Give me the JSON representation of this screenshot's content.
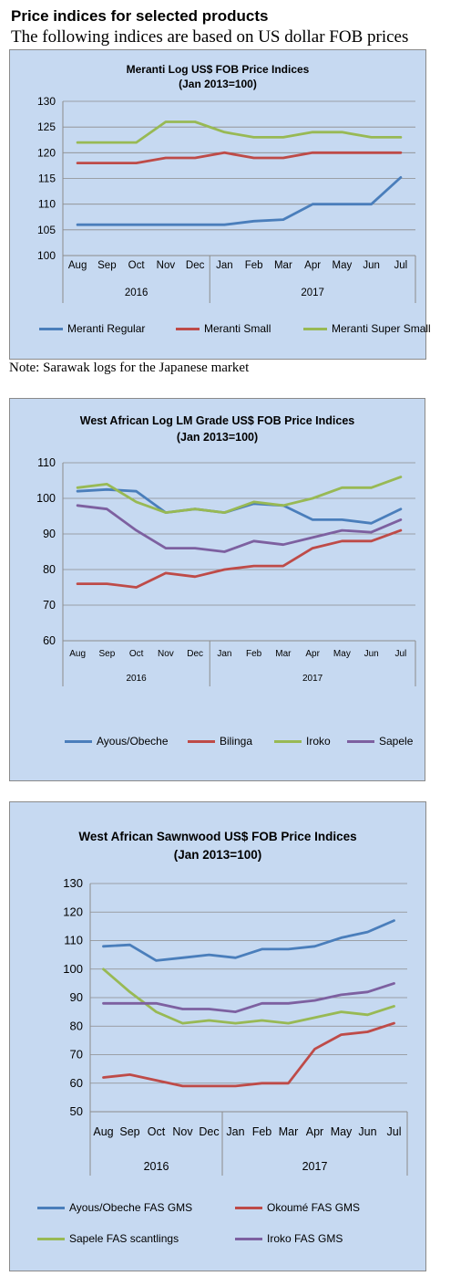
{
  "page": {
    "heading": "Price indices for selected products",
    "subheading": "The following indices are based on US dollar FOB prices",
    "note": "Note: Sarawak logs for the Japanese market"
  },
  "chart_data": [
    {
      "type": "line",
      "title": "Meranti Log US$ FOB Price Indices",
      "subtitle": "(Jan 2013=100)",
      "categories": [
        "Aug",
        "Sep",
        "Oct",
        "Nov",
        "Dec",
        "Jan",
        "Feb",
        "Mar",
        "Apr",
        "May",
        "Jun",
        "Jul"
      ],
      "groups": [
        {
          "label": "2016",
          "from": 0,
          "to": 4
        },
        {
          "label": "2017",
          "from": 5,
          "to": 11
        }
      ],
      "ylim": [
        100,
        130
      ],
      "yticks": [
        100,
        105,
        110,
        115,
        120,
        125,
        130
      ],
      "grid": true,
      "legend": "bottom",
      "series": [
        {
          "name": "Meranti Regular",
          "color": "#4a7ebb",
          "values": [
            106,
            106,
            106,
            106,
            106,
            106,
            106.7,
            107,
            110,
            110,
            110,
            115.2
          ]
        },
        {
          "name": "Meranti Small",
          "color": "#be4b48",
          "values": [
            118,
            118,
            118,
            119,
            119,
            120,
            119,
            119,
            120,
            120,
            120,
            120
          ]
        },
        {
          "name": "Meranti Super Small",
          "color": "#98b954",
          "values": [
            122,
            122,
            122,
            126,
            126,
            124,
            123,
            123,
            124,
            124,
            123,
            123
          ]
        }
      ]
    },
    {
      "type": "line",
      "title": "West African Log LM Grade US$ FOB Price Indices",
      "subtitle": "(Jan 2013=100)",
      "categories": [
        "Aug",
        "Sep",
        "Oct",
        "Nov",
        "Dec",
        "Jan",
        "Feb",
        "Mar",
        "Apr",
        "May",
        "Jun",
        "Jul"
      ],
      "groups": [
        {
          "label": "2016",
          "from": 0,
          "to": 4
        },
        {
          "label": "2017",
          "from": 5,
          "to": 11
        }
      ],
      "ylim": [
        60,
        110
      ],
      "yticks": [
        60,
        70,
        80,
        90,
        100,
        110
      ],
      "grid": true,
      "legend": "bottom",
      "series": [
        {
          "name": "Ayous/Obeche",
          "color": "#4a7ebb",
          "values": [
            102,
            102.5,
            102,
            96,
            97,
            96,
            98.5,
            98,
            94,
            94,
            93,
            97
          ]
        },
        {
          "name": "Bilinga",
          "color": "#be4b48",
          "values": [
            76,
            76,
            75,
            79,
            78,
            80,
            81,
            81,
            86,
            88,
            88,
            91
          ]
        },
        {
          "name": "Iroko",
          "color": "#98b954",
          "values": [
            103,
            104,
            99,
            96,
            97,
            96,
            99,
            98,
            100,
            103,
            103,
            106
          ]
        },
        {
          "name": "Sapele",
          "color": "#7d60a0",
          "values": [
            98,
            97,
            91,
            86,
            86,
            85,
            88,
            87,
            89,
            91,
            90.5,
            94
          ]
        }
      ]
    },
    {
      "type": "line",
      "title": "West African Sawnwood US$ FOB Price Indices",
      "subtitle": "(Jan 2013=100)",
      "categories": [
        "Aug",
        "Sep",
        "Oct",
        "Nov",
        "Dec",
        "Jan",
        "Feb",
        "Mar",
        "Apr",
        "May",
        "Jun",
        "Jul"
      ],
      "groups": [
        {
          "label": "2016",
          "from": 0,
          "to": 4
        },
        {
          "label": "2017",
          "from": 5,
          "to": 11
        }
      ],
      "ylim": [
        50,
        130
      ],
      "yticks": [
        50,
        60,
        70,
        80,
        90,
        100,
        110,
        120,
        130
      ],
      "grid": true,
      "legend": "bottom",
      "series": [
        {
          "name": "Ayous/Obeche  FAS GMS",
          "color": "#4a7ebb",
          "values": [
            108,
            108.5,
            103,
            104,
            105,
            104,
            107,
            107,
            108,
            111,
            113,
            117
          ]
        },
        {
          "name": "Okoumé  FAS GMS",
          "color": "#be4b48",
          "values": [
            62,
            63,
            61,
            59,
            59,
            59,
            60,
            60,
            72,
            77,
            78,
            81
          ]
        },
        {
          "name": "Sapele FAS scantlings",
          "color": "#98b954",
          "values": [
            100,
            92,
            85,
            81,
            82,
            81,
            82,
            81,
            83,
            85,
            84,
            87
          ]
        },
        {
          "name": "Iroko FAS GMS",
          "color": "#7d60a0",
          "values": [
            88,
            88,
            88,
            86,
            86,
            85,
            88,
            88,
            89,
            91,
            92,
            95
          ]
        }
      ]
    }
  ]
}
